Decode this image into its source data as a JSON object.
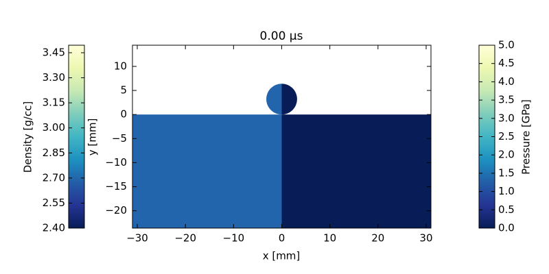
{
  "chart_data": {
    "type": "field",
    "title": "0.00 μs",
    "xlabel": "x [mm]",
    "ylabel": "y [mm]",
    "xlim": [
      -31,
      31
    ],
    "ylim": [
      -23.6,
      14.4
    ],
    "xticks": [
      {
        "value": -30,
        "label": "−30"
      },
      {
        "value": -20,
        "label": "−20"
      },
      {
        "value": -10,
        "label": "−10"
      },
      0,
      10,
      20,
      30
    ],
    "yticks": [
      {
        "value": -20,
        "label": "−20"
      },
      {
        "value": -15,
        "label": "−15"
      },
      {
        "value": -10,
        "label": "−10"
      },
      {
        "value": -5,
        "label": "−5"
      },
      0,
      5,
      10
    ],
    "plate_top": 0,
    "projectile": {
      "center": [
        0,
        3.2
      ],
      "radius": 3.2
    },
    "colormap": [
      "#081d58",
      "#253494",
      "#225ea8",
      "#1d91c0",
      "#41b6c4",
      "#7fcdbb",
      "#c7e9b4",
      "#edf8b1",
      "#ffffd9"
    ],
    "density": {
      "label": "Density [g/cc]",
      "value": 2.7,
      "color": "#2265ac",
      "lim": [
        2.4,
        3.495
      ],
      "ticks": [
        {
          "value": 2.4,
          "label": "2.40"
        },
        {
          "value": 2.55,
          "label": "2.55"
        },
        {
          "value": 2.7,
          "label": "2.70"
        },
        {
          "value": 2.85,
          "label": "2.85"
        },
        {
          "value": 3.0,
          "label": "3.00"
        },
        {
          "value": 3.15,
          "label": "3.15"
        },
        {
          "value": 3.3,
          "label": "3.30"
        },
        {
          "value": 3.45,
          "label": "3.45"
        }
      ]
    },
    "pressure": {
      "label": "Pressure [GPa]",
      "value": 0,
      "color": "#081d58",
      "lim": [
        0,
        5
      ],
      "ticks": [
        {
          "value": 0,
          "label": "0.0"
        },
        {
          "value": 0.5,
          "label": "0.5"
        },
        {
          "value": 1,
          "label": "1.0"
        },
        {
          "value": 1.5,
          "label": "1.5"
        },
        {
          "value": 2,
          "label": "2.0"
        },
        {
          "value": 2.5,
          "label": "2.5"
        },
        {
          "value": 3,
          "label": "3.0"
        },
        {
          "value": 3.5,
          "label": "3.5"
        },
        {
          "value": 4,
          "label": "4.0"
        },
        {
          "value": 4.5,
          "label": "4.5"
        },
        {
          "value": 5,
          "label": "5.0"
        }
      ]
    }
  }
}
